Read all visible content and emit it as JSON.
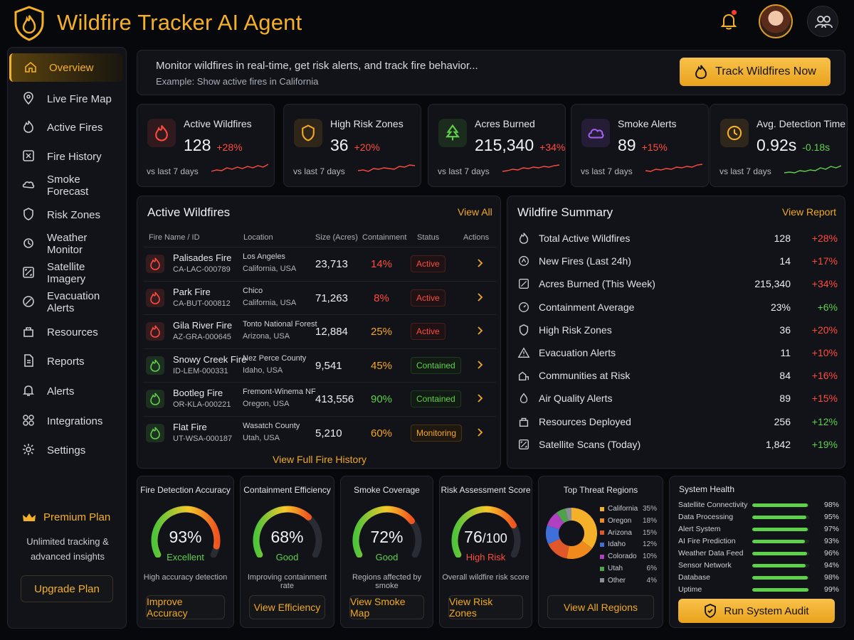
{
  "app": {
    "title": "Wildfire Tracker AI Agent"
  },
  "colors": {
    "accent": "#f5b02a",
    "danger": "#ff4b3e",
    "success": "#5fd04a",
    "warning": "#f6a623",
    "background": "#07080b",
    "panel": "#111319"
  },
  "sidebar": {
    "items": [
      {
        "label": "Overview",
        "icon": "home-icon",
        "active": true
      },
      {
        "label": "Live Fire Map",
        "icon": "map-pin-icon"
      },
      {
        "label": "Active Fires",
        "icon": "flame-icon"
      },
      {
        "label": "Fire History",
        "icon": "history-icon"
      },
      {
        "label": "Smoke Forecast",
        "icon": "smoke-icon"
      },
      {
        "label": "Risk Zones",
        "icon": "shield-icon"
      },
      {
        "label": "Weather Monitor",
        "icon": "weather-icon"
      },
      {
        "label": "Satellite Imagery",
        "icon": "satellite-icon"
      },
      {
        "label": "Evacuation Alerts",
        "icon": "alert-icon"
      },
      {
        "label": "Resources",
        "icon": "resources-icon"
      },
      {
        "label": "Reports",
        "icon": "report-icon"
      },
      {
        "label": "Alerts",
        "icon": "bell-icon"
      },
      {
        "label": "Integrations",
        "icon": "integrations-icon"
      },
      {
        "label": "Settings",
        "icon": "gear-icon"
      }
    ],
    "plan": {
      "title": "Premium Plan",
      "description": "Unlimited tracking & advanced insights",
      "button": "Upgrade Plan"
    }
  },
  "prompt": {
    "text": "Monitor wildfires in real-time, get risk alerts, and track fire behavior...",
    "example": "Example: Show active fires in California",
    "button": "Track Wildfires Now"
  },
  "stats": [
    {
      "label": "Active Wildfires",
      "value": "128",
      "change": "+28%",
      "trend": "up-bad",
      "period": "vs last 7 days",
      "icon": "flame-icon",
      "color": "#ff4b3e"
    },
    {
      "label": "High Risk Zones",
      "value": "36",
      "change": "+20%",
      "trend": "up-bad",
      "period": "vs last 7 days",
      "icon": "shield-icon",
      "color": "#f6a623"
    },
    {
      "label": "Acres Burned",
      "value": "215,340",
      "change": "+34%",
      "trend": "up-bad",
      "period": "vs last 7 days",
      "icon": "tree-icon",
      "color": "#5fd04a"
    },
    {
      "label": "Smoke Alerts",
      "value": "89",
      "change": "+15%",
      "trend": "up-bad",
      "period": "vs last 7 days",
      "icon": "cloud-icon",
      "color": "#a561f2"
    },
    {
      "label": "Avg. Detection Time",
      "value": "0.92s",
      "change": "-0.18s",
      "trend": "down-good",
      "period": "vs last 7 days",
      "icon": "clock-icon",
      "color": "#f5b02a"
    }
  ],
  "fires": {
    "title": "Active Wildfires",
    "view_all": "View All",
    "headers": {
      "name": "Fire Name / ID",
      "location": "Location",
      "size": "Size (Acres)",
      "containment": "Containment",
      "status": "Status",
      "actions": "Actions"
    },
    "rows": [
      {
        "name": "Palisades Fire",
        "id": "CA-LAC-000789",
        "loc1": "Los Angeles",
        "loc2": "California, USA",
        "size": "23,713",
        "containment": "14%",
        "status": "Active",
        "level": "red"
      },
      {
        "name": "Park Fire",
        "id": "CA-BUT-000812",
        "loc1": "Chico",
        "loc2": "California, USA",
        "size": "71,263",
        "containment": "8%",
        "status": "Active",
        "level": "red"
      },
      {
        "name": "Gila River Fire",
        "id": "AZ-GRA-000645",
        "loc1": "Tonto National Forest",
        "loc2": "Arizona, USA",
        "size": "12,884",
        "containment": "25%",
        "status": "Active",
        "level": "orange"
      },
      {
        "name": "Snowy Creek Fire",
        "id": "ID-LEM-000331",
        "loc1": "Nez Perce County",
        "loc2": "Idaho, USA",
        "size": "9,541",
        "containment": "45%",
        "status": "Contained",
        "level": "orange"
      },
      {
        "name": "Bootleg Fire",
        "id": "OR-KLA-000221",
        "loc1": "Fremont-Winema NF",
        "loc2": "Oregon, USA",
        "size": "413,556",
        "containment": "90%",
        "status": "Contained",
        "level": "green"
      },
      {
        "name": "Flat Fire",
        "id": "UT-WSA-000187",
        "loc1": "Wasatch County",
        "loc2": "Utah, USA",
        "size": "5,210",
        "containment": "60%",
        "status": "Monitoring",
        "level": "orange"
      }
    ],
    "footer": "View Full Fire History"
  },
  "summary": {
    "title": "Wildfire Summary",
    "link": "View Report",
    "rows": [
      {
        "label": "Total Active Wildfires",
        "value": "128",
        "change": "+28%",
        "good": false,
        "icon": "flame-icon"
      },
      {
        "label": "New Fires (Last 24h)",
        "value": "14",
        "change": "+17%",
        "good": false,
        "icon": "new-fire-icon"
      },
      {
        "label": "Acres Burned (This Week)",
        "value": "215,340",
        "change": "+34%",
        "good": false,
        "icon": "area-icon"
      },
      {
        "label": "Containment Average",
        "value": "23%",
        "change": "+6%",
        "good": true,
        "icon": "gauge-icon"
      },
      {
        "label": "High Risk Zones",
        "value": "36",
        "change": "+20%",
        "good": false,
        "icon": "shield-icon"
      },
      {
        "label": "Evacuation Alerts",
        "value": "11",
        "change": "+10%",
        "good": false,
        "icon": "warning-icon"
      },
      {
        "label": "Communities at Risk",
        "value": "84",
        "change": "+16%",
        "good": false,
        "icon": "community-icon"
      },
      {
        "label": "Air Quality Alerts",
        "value": "89",
        "change": "+15%",
        "good": false,
        "icon": "air-icon"
      },
      {
        "label": "Resources Deployed",
        "value": "256",
        "change": "+12%",
        "good": true,
        "icon": "resources-icon"
      },
      {
        "label": "Satellite Scans (Today)",
        "value": "1,842",
        "change": "+19%",
        "good": true,
        "icon": "satellite-icon"
      }
    ]
  },
  "gauges": [
    {
      "title": "Fire Detection Accuracy",
      "value": "93%",
      "fraction": 0.93,
      "quality": "Excellent",
      "quality_color": "#5fd04a",
      "description": "High accuracy detection",
      "button": "Improve Accuracy"
    },
    {
      "title": "Containment Efficiency",
      "value": "68%",
      "fraction": 0.68,
      "quality": "Good",
      "quality_color": "#5fd04a",
      "description": "Improving containment rate",
      "button": "View Efficiency"
    },
    {
      "title": "Smoke Coverage",
      "value": "72%",
      "fraction": 0.72,
      "quality": "Good",
      "quality_color": "#5fd04a",
      "description": "Regions affected by smoke",
      "button": "View Smoke Map"
    },
    {
      "title": "Risk Assessment Score",
      "value": "76",
      "value_suffix": "/100",
      "fraction": 0.76,
      "quality": "High Risk",
      "quality_color": "#ff4b3e",
      "description": "Overall wildfire risk score",
      "button": "View Risk Zones"
    }
  ],
  "regions": {
    "title": "Top Threat Regions",
    "button": "View All Regions",
    "items": [
      {
        "name": "California",
        "value": 35,
        "label": "35%",
        "color": "#f5b02a"
      },
      {
        "name": "Oregon",
        "value": 18,
        "label": "18%",
        "color": "#f08a1c"
      },
      {
        "name": "Arizona",
        "value": 15,
        "label": "15%",
        "color": "#e0572a"
      },
      {
        "name": "Idaho",
        "value": 12,
        "label": "12%",
        "color": "#3f6fd8"
      },
      {
        "name": "Colorado",
        "value": 10,
        "label": "10%",
        "color": "#b040c0"
      },
      {
        "name": "Utah",
        "value": 6,
        "label": "6%",
        "color": "#4ea34a"
      },
      {
        "name": "Other",
        "value": 4,
        "label": "4%",
        "color": "#8a8e96"
      }
    ]
  },
  "health": {
    "title": "System Health",
    "items": [
      {
        "label": "Satellite Connectivity",
        "value": 98,
        "label_pct": "98%"
      },
      {
        "label": "Data Processing",
        "value": 95,
        "label_pct": "95%"
      },
      {
        "label": "Alert System",
        "value": 97,
        "label_pct": "97%"
      },
      {
        "label": "AI Fire Prediction",
        "value": 93,
        "label_pct": "93%"
      },
      {
        "label": "Weather Data Feed",
        "value": 96,
        "label_pct": "96%"
      },
      {
        "label": "Sensor Network",
        "value": 94,
        "label_pct": "94%"
      },
      {
        "label": "Database",
        "value": 98,
        "label_pct": "98%"
      },
      {
        "label": "Uptime",
        "value": 99,
        "label_pct": "99%"
      }
    ],
    "button": "Run System Audit"
  }
}
